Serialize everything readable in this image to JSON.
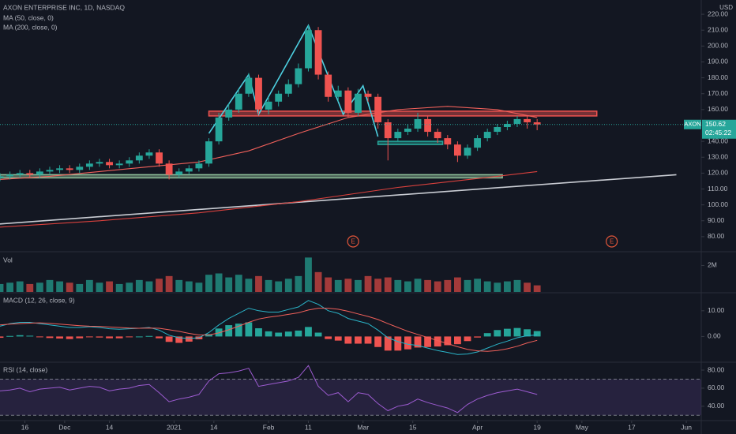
{
  "chart_data": [
    {
      "type": "candlestick",
      "title": "AXON ENTERPRISE INC, 1D, NASDAQ",
      "unit": "USD",
      "x": [
        0,
        2,
        4,
        6,
        8,
        10,
        12,
        14,
        16,
        18,
        20,
        22,
        24,
        26,
        28,
        30,
        32,
        34,
        36,
        38,
        40,
        42,
        44,
        46,
        48,
        50,
        52,
        54,
        56,
        58,
        60,
        62,
        64,
        66,
        68,
        70,
        72,
        74,
        76,
        78,
        80,
        82,
        84,
        86,
        88,
        90,
        92,
        94,
        96,
        98,
        100,
        102,
        104,
        106,
        108
      ],
      "open": [
        117,
        118,
        119,
        120,
        119,
        121,
        122,
        123,
        122,
        124,
        126,
        127,
        125,
        126,
        128,
        131,
        133,
        126,
        119,
        121,
        123,
        126,
        140,
        155,
        160,
        170,
        180,
        160,
        165,
        170,
        176,
        186,
        210,
        182,
        168,
        172,
        158,
        170,
        168,
        152,
        142,
        146,
        148,
        154,
        146,
        142,
        138,
        131,
        136,
        142,
        146,
        149,
        151,
        154,
        152
      ],
      "high": [
        120,
        121,
        122,
        122,
        123,
        124,
        125,
        125,
        126,
        128,
        129,
        129,
        128,
        130,
        133,
        135,
        135,
        128,
        123,
        125,
        128,
        142,
        158,
        164,
        173,
        183,
        182,
        168,
        172,
        179,
        189,
        213,
        212,
        184,
        175,
        174,
        173,
        172,
        170,
        154,
        148,
        151,
        158,
        156,
        148,
        144,
        140,
        138,
        144,
        148,
        151,
        153,
        156,
        156,
        154
      ],
      "low": [
        115,
        116,
        117,
        117,
        117,
        119,
        120,
        120,
        120,
        122,
        124,
        123,
        123,
        124,
        126,
        129,
        124,
        116,
        117,
        119,
        121,
        124,
        138,
        153,
        158,
        168,
        157,
        157,
        162,
        168,
        174,
        184,
        179,
        165,
        165,
        155,
        156,
        165,
        148,
        128,
        140,
        144,
        146,
        143,
        139,
        135,
        127,
        129,
        134,
        140,
        144,
        147,
        149,
        148,
        147
      ],
      "close": [
        118,
        119,
        120,
        119,
        121,
        122,
        123,
        122,
        124,
        126,
        127,
        125,
        126,
        128,
        131,
        133,
        126,
        119,
        121,
        123,
        126,
        140,
        155,
        160,
        170,
        180,
        160,
        165,
        170,
        176,
        186,
        210,
        182,
        168,
        172,
        158,
        170,
        168,
        152,
        142,
        146,
        148,
        154,
        146,
        142,
        138,
        131,
        136,
        142,
        146,
        149,
        151,
        154,
        152,
        150.62
      ],
      "up_color": "#26a69a",
      "down_color": "#ef5350",
      "xlim": [
        0,
        141
      ],
      "xticks": [
        {
          "value": 5,
          "label": "16"
        },
        {
          "value": 13,
          "label": "Dec"
        },
        {
          "value": 22,
          "label": "14"
        },
        {
          "value": 35,
          "label": "2021"
        },
        {
          "value": 43,
          "label": "14"
        },
        {
          "value": 54,
          "label": "Feb"
        },
        {
          "value": 62,
          "label": "11"
        },
        {
          "value": 73,
          "label": "Mar"
        },
        {
          "value": 83,
          "label": "15"
        },
        {
          "value": 96,
          "label": "Apr"
        },
        {
          "value": 108,
          "label": "19"
        },
        {
          "value": 117,
          "label": "May"
        },
        {
          "value": 127,
          "label": "17"
        },
        {
          "value": 138,
          "label": "Jun"
        }
      ],
      "ylim": [
        72,
        227
      ],
      "yticks": [
        {
          "value": 80,
          "label": "80.00"
        },
        {
          "value": 90,
          "label": "90.00"
        },
        {
          "value": 100,
          "label": "100.00"
        },
        {
          "value": 110,
          "label": "110.00"
        },
        {
          "value": 120,
          "label": "120.00"
        },
        {
          "value": 130,
          "label": "130.00"
        },
        {
          "value": 140,
          "label": "140.00"
        },
        {
          "value": 150,
          "label": "150.00"
        },
        {
          "value": 160,
          "label": "160.00"
        },
        {
          "value": 170,
          "label": "170.00"
        },
        {
          "value": 180,
          "label": "180.00"
        },
        {
          "value": 190,
          "label": "190.00"
        },
        {
          "value": 200,
          "label": "200.00"
        },
        {
          "value": 210,
          "label": "210.00"
        },
        {
          "value": 220,
          "label": "220.00"
        }
      ],
      "overlays": [
        {
          "name": "MA (50, close, 0)",
          "color": "#f0605a",
          "x": [
            0,
            10,
            20,
            30,
            40,
            50,
            60,
            70,
            80,
            90,
            100,
            108
          ],
          "values": [
            116,
            118,
            121,
            124,
            127,
            134,
            145,
            155,
            160,
            162,
            160,
            155
          ]
        },
        {
          "name": "MA (200, close, 0)",
          "color": "#d9413d",
          "x": [
            0,
            20,
            40,
            60,
            80,
            100,
            108
          ],
          "values": [
            86,
            90,
            95,
            102,
            111,
            118,
            121
          ]
        }
      ],
      "zones": [
        {
          "x": [
            42,
            120
          ],
          "y": [
            156,
            159
          ],
          "color": "#ef5350"
        },
        {
          "x": [
            0,
            101
          ],
          "y": [
            117,
            119
          ],
          "color": "#8fbf9a"
        },
        {
          "x": [
            76,
            89
          ],
          "y": [
            138,
            140
          ],
          "color": "#26a69a"
        }
      ],
      "trendlines": [
        {
          "x": [
            0,
            136
          ],
          "y": [
            88,
            119
          ],
          "color": "#c9ccd3"
        },
        {
          "x": [
            42,
            50,
            52,
            62,
            69,
            73,
            76
          ],
          "y": [
            145,
            182,
            157,
            213,
            157,
            175,
            143
          ],
          "color": "#4dd0e1"
        }
      ],
      "earnings": [
        {
          "x": 71,
          "label": "E"
        },
        {
          "x": 123,
          "label": "E"
        }
      ],
      "last_price": {
        "symbol": "AXON",
        "value": 150.62,
        "countdown": "02:45:22",
        "color": "#26a69a"
      }
    },
    {
      "type": "bar",
      "title": "Vol",
      "values": [
        0.6,
        0.7,
        0.8,
        0.6,
        0.7,
        0.9,
        0.8,
        0.7,
        0.6,
        0.9,
        0.7,
        0.8,
        0.6,
        0.7,
        0.9,
        0.8,
        1.0,
        1.2,
        0.9,
        0.8,
        0.7,
        1.3,
        1.4,
        1.1,
        1.3,
        1.0,
        1.2,
        0.9,
        0.8,
        1.0,
        1.2,
        2.6,
        1.5,
        1.1,
        0.9,
        1.0,
        0.9,
        1.2,
        1.0,
        1.1,
        0.9,
        0.8,
        1.0,
        0.9,
        0.8,
        0.9,
        1.1,
        0.9,
        1.0,
        0.8,
        0.7,
        0.8,
        0.9,
        0.7,
        0.5
      ],
      "up_color": "#1f7a72",
      "down_color": "#a33a3a",
      "ylim": [
        0,
        2.86
      ],
      "yticks": [
        {
          "value": 2,
          "label": "2M"
        }
      ]
    },
    {
      "type": "macd",
      "title": "MACD (12, 26, close, 9)",
      "series": [
        {
          "color": "#2ab4c8",
          "values": [
            4,
            5,
            5.5,
            5.5,
            5,
            4.5,
            4,
            3.5,
            3.5,
            3.8,
            3.5,
            3,
            2.8,
            3,
            3.2,
            3.5,
            2.5,
            0.5,
            -0.5,
            -0.8,
            -0.5,
            1.5,
            4.5,
            7,
            9,
            11,
            10,
            9.5,
            9.5,
            10.5,
            11.5,
            14,
            12.5,
            10,
            9,
            7,
            6,
            5,
            2.5,
            -0.5,
            -2,
            -3,
            -3.5,
            -4.5,
            -5.5,
            -6.2,
            -7,
            -6.8,
            -6,
            -4.5,
            -3,
            -1.8,
            -0.5,
            0.3,
            0.6
          ]
        },
        {
          "color": "#f0605a",
          "values": [
            4.5,
            4.8,
            5,
            5.2,
            5.3,
            5.1,
            4.8,
            4.5,
            4.2,
            4,
            3.9,
            3.7,
            3.5,
            3.3,
            3.2,
            3.3,
            3.2,
            2.6,
            2,
            1.2,
            0.6,
            0.6,
            1.4,
            2.6,
            4,
            5.5,
            6.8,
            7.5,
            8,
            8.6,
            9.2,
            10.3,
            11,
            11,
            10.6,
            9.8,
            8.8,
            7.8,
            6.6,
            5,
            3.5,
            2,
            0.8,
            -0.4,
            -1.6,
            -2.8,
            -4,
            -5,
            -5.6,
            -5.8,
            -5.5,
            -4.8,
            -3.8,
            -2.5,
            -1.5
          ]
        }
      ],
      "histogram": {
        "up_color": "#26a69a",
        "down_color": "#ef5350",
        "values": [
          -0.5,
          0.2,
          0.5,
          0.3,
          -0.3,
          -0.6,
          -0.8,
          -1,
          -0.7,
          -0.2,
          -0.4,
          -0.7,
          -0.7,
          -0.3,
          0,
          0.2,
          -0.7,
          -2.1,
          -2.5,
          -2,
          -1.1,
          0.9,
          3.1,
          4.4,
          5,
          5.5,
          3.2,
          2,
          1.5,
          1.9,
          2.3,
          3.7,
          1.5,
          -1,
          -1.6,
          -2.8,
          -2.8,
          -2.8,
          -4.1,
          -5.5,
          -5.5,
          -5,
          -4.3,
          -4.1,
          -3.9,
          -3.4,
          -3,
          -1.8,
          -0.4,
          1.3,
          2.5,
          3,
          3.3,
          2.8,
          2.1
        ]
      },
      "ylim": [
        -9.7,
        16.4
      ],
      "yticks": [
        {
          "value": 0,
          "label": "0.00"
        },
        {
          "value": 10,
          "label": "10.00"
        }
      ]
    },
    {
      "type": "line",
      "title": "RSI (14, close)",
      "color": "#9c5bd0",
      "values": [
        57,
        58,
        60,
        56,
        59,
        60,
        61,
        58,
        60,
        62,
        61,
        57,
        59,
        60,
        63,
        64,
        55,
        45,
        48,
        50,
        53,
        68,
        76,
        77,
        79,
        82,
        62,
        64,
        66,
        68,
        72,
        85,
        62,
        52,
        55,
        45,
        55,
        53,
        43,
        35,
        40,
        42,
        48,
        44,
        41,
        38,
        33,
        42,
        48,
        52,
        55,
        57,
        59,
        56,
        53
      ],
      "bands": [
        30,
        70
      ],
      "band_color": "rgba(126,87,194,0.18)",
      "ylim": [
        25,
        87
      ],
      "yticks": [
        {
          "value": 40,
          "label": "40.00"
        },
        {
          "value": 60,
          "label": "60.00"
        },
        {
          "value": 80,
          "label": "80.00"
        }
      ]
    }
  ]
}
